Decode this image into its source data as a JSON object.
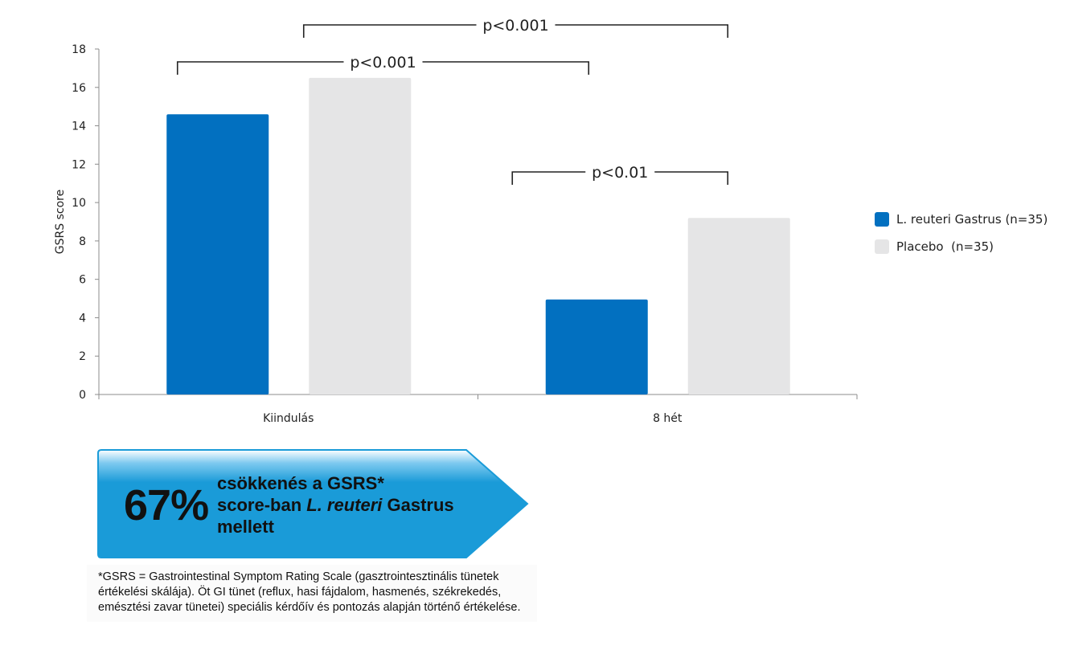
{
  "chart_data": {
    "type": "bar",
    "categories": [
      "Kiindulás",
      "8 hét"
    ],
    "series": [
      {
        "name": "L. reuteri Gastrus (n=35)",
        "values": [
          14.6,
          4.95
        ],
        "color": "#0270C0"
      },
      {
        "name": "Placebo  (n=35)",
        "values": [
          16.5,
          9.2
        ],
        "color": "#E5E5E6"
      }
    ],
    "ylabel": "GSRS score",
    "xlabel": "",
    "ylim": [
      0,
      18
    ],
    "yticks": [
      0,
      2,
      4,
      6,
      8,
      10,
      12,
      14,
      16,
      18
    ],
    "grid": false,
    "legend_position": "right",
    "significance": [
      {
        "label": "p<0.001",
        "between": "Kiindulás L. reuteri vs Kiindulás Placebo… 8 hét L. reuteri"
      },
      {
        "label": "p<0.001",
        "between": "Kiindulás Placebo vs 8 hét Placebo"
      },
      {
        "label": "p<0.01",
        "between": "8 hét L. reuteri vs 8 hét Placebo"
      }
    ]
  },
  "callout": {
    "percent": "67%",
    "line1": "csökkenés a GSRS*",
    "line2_pre": "score-ban ",
    "line2_italic": "L. reuteri",
    "line2_post": " Gastrus",
    "line3": "mellett",
    "color": "#1A9BD8"
  },
  "footnote": "*GSRS = Gastrointestinal Symptom Rating Scale (gasztrointesztinális tünetek értékelési skálája). Öt GI tünet (reflux, hasi fájdalom, hasmenés, székrekedés, emésztési zavar tünetei) speciális kérdőív és pontozás alapján történő értékelése."
}
